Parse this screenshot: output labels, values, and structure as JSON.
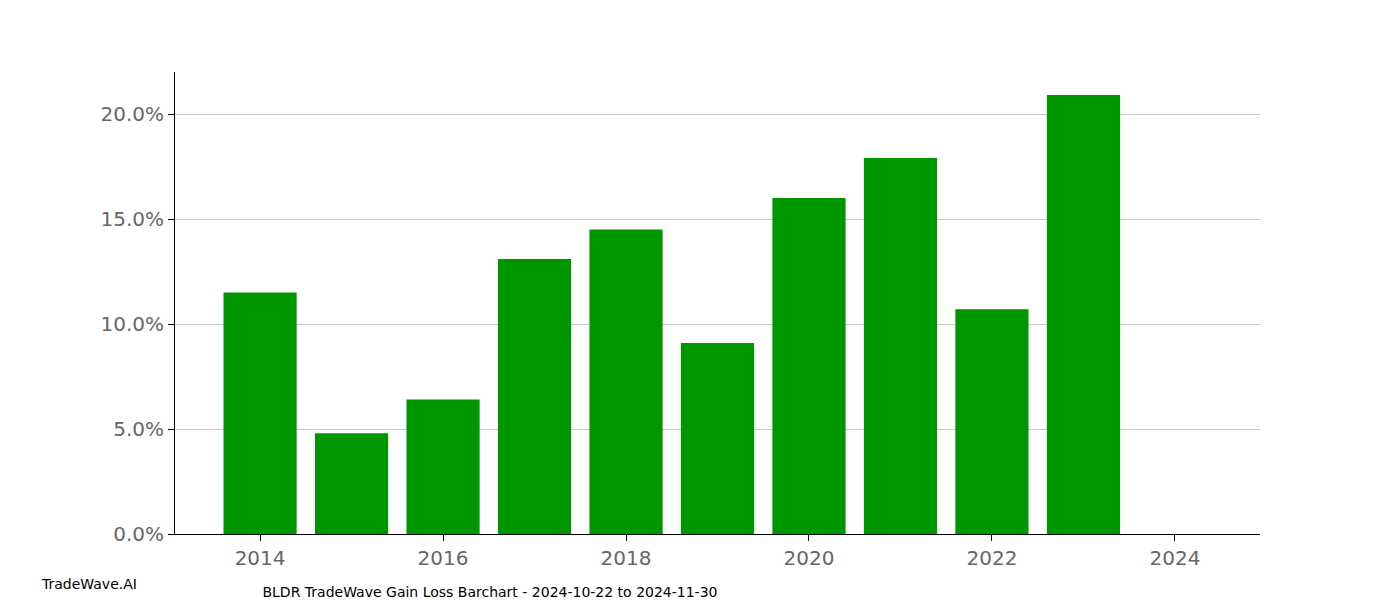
{
  "chart_data": {
    "type": "bar",
    "title": "BLDR TradeWave Gain Loss Barchart - 2024-10-22 to 2024-11-30",
    "annotations": [
      "TradeWave.AI"
    ],
    "x": [
      2014,
      2015,
      2016,
      2017,
      2018,
      2019,
      2020,
      2021,
      2022,
      2023
    ],
    "values": [
      11.5,
      4.8,
      6.4,
      13.1,
      14.5,
      9.1,
      16.0,
      17.9,
      10.7,
      20.9
    ],
    "color": "#009600",
    "xlim": [
      2013.07,
      2024.93
    ],
    "xticks": [
      2014,
      2016,
      2018,
      2020,
      2022,
      2024
    ],
    "ylim": [
      0,
      22
    ],
    "yticks": [
      {
        "value": 0,
        "label": "0.0%"
      },
      {
        "value": 5,
        "label": "5.0%"
      },
      {
        "value": 10,
        "label": "10.0%"
      },
      {
        "value": 15,
        "label": "15.0%"
      },
      {
        "value": 20,
        "label": "20.0%"
      }
    ],
    "grid": true
  }
}
